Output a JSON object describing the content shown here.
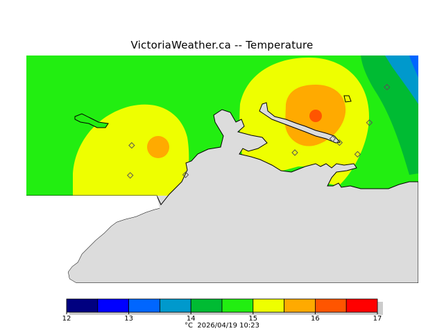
{
  "header": {
    "title": "VictoriaWeather.ca  --  Temperature"
  },
  "legend": {
    "unit": "°C",
    "timestamp": "2026/04/19 10:23",
    "min": 12,
    "max": 17,
    "colors": [
      "#000080",
      "#0000ff",
      "#0066ff",
      "#0099cc",
      "#00bb33",
      "#22ee11",
      "#eeff00",
      "#ffaa00",
      "#ff5500",
      "#ff0000"
    ],
    "tick_labels": [
      "12",
      "13",
      "14",
      "15",
      "16",
      "17"
    ]
  },
  "map": {
    "land_color": "#22ee11",
    "sea_color": "#dcdcdc",
    "stations": [
      {
        "lon": -123.565,
        "lat": 48.548
      },
      {
        "lon": -123.568,
        "lat": 48.494
      },
      {
        "lon": -123.455,
        "lat": 48.495
      },
      {
        "lon": -123.232,
        "lat": 48.535
      },
      {
        "lon": -123.155,
        "lat": 48.56
      },
      {
        "lon": -123.141,
        "lat": 48.553
      },
      {
        "lon": -123.08,
        "lat": 48.589
      },
      {
        "lon": -123.104,
        "lat": 48.532
      },
      {
        "lon": -123.044,
        "lat": 48.653
      }
    ]
  }
}
